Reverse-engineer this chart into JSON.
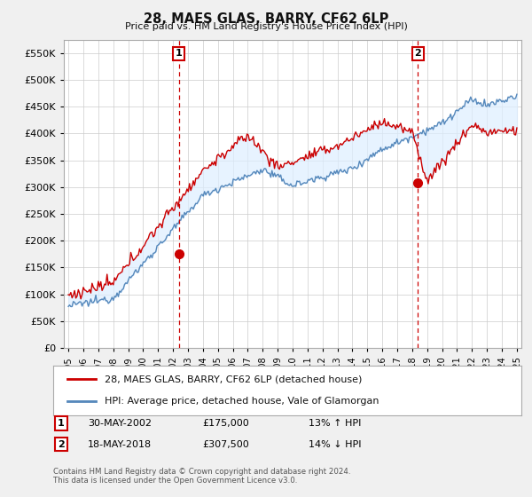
{
  "title": "28, MAES GLAS, BARRY, CF62 6LP",
  "subtitle": "Price paid vs. HM Land Registry's House Price Index (HPI)",
  "ylabel_vals": [
    0,
    50000,
    100000,
    150000,
    200000,
    250000,
    300000,
    350000,
    400000,
    450000,
    500000,
    550000
  ],
  "ylim": [
    0,
    575000
  ],
  "xlim_start": 1994.7,
  "xlim_end": 2025.3,
  "sale1_x": 2002.4,
  "sale1_y": 175000,
  "sale1_label": "1",
  "sale2_x": 2018.38,
  "sale2_y": 307500,
  "sale2_label": "2",
  "red_line_color": "#cc0000",
  "blue_line_color": "#5588bb",
  "fill_color": "#ddeeff",
  "annotation_box_color": "#cc0000",
  "legend1": "28, MAES GLAS, BARRY, CF62 6LP (detached house)",
  "legend2": "HPI: Average price, detached house, Vale of Glamorgan",
  "ann1_date": "30-MAY-2002",
  "ann1_price": "£175,000",
  "ann1_hpi": "13% ↑ HPI",
  "ann2_date": "18-MAY-2018",
  "ann2_price": "£307,500",
  "ann2_hpi": "14% ↓ HPI",
  "footer": "Contains HM Land Registry data © Crown copyright and database right 2024.\nThis data is licensed under the Open Government Licence v3.0.",
  "bg_color": "#f0f0f0",
  "plot_bg_color": "#ffffff",
  "grid_color": "#cccccc"
}
